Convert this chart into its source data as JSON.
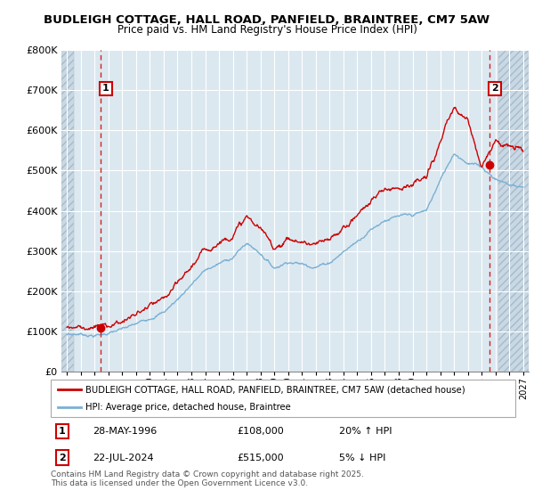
{
  "title": "BUDLEIGH COTTAGE, HALL ROAD, PANFIELD, BRAINTREE, CM7 5AW",
  "subtitle": "Price paid vs. HM Land Registry's House Price Index (HPI)",
  "ylim": [
    0,
    800000
  ],
  "yticks": [
    0,
    100000,
    200000,
    300000,
    400000,
    500000,
    600000,
    700000,
    800000
  ],
  "ytick_labels": [
    "£0",
    "£100K",
    "£200K",
    "£300K",
    "£400K",
    "£500K",
    "£600K",
    "£700K",
    "£800K"
  ],
  "xlim_start": 1993.6,
  "xlim_end": 2027.4,
  "hatch_left_end": 1994.5,
  "hatch_right_start": 2025.2,
  "sale1_date": 1996.41,
  "sale1_price": 108000,
  "sale1_label": "1",
  "sale1_date_str": "28-MAY-1996",
  "sale1_price_str": "£108,000",
  "sale1_hpi_str": "20% ↑ HPI",
  "sale2_date": 2024.55,
  "sale2_price": 515000,
  "sale2_label": "2",
  "sale2_date_str": "22-JUL-2024",
  "sale2_price_str": "£515,000",
  "sale2_hpi_str": "5% ↓ HPI",
  "red_line_color": "#cc0000",
  "blue_line_color": "#7ab0d4",
  "plot_bg_color": "#dce8f0",
  "hatch_color": "#c8d8e4",
  "grid_color": "#ffffff",
  "legend_label_red": "BUDLEIGH COTTAGE, HALL ROAD, PANFIELD, BRAINTREE, CM7 5AW (detached house)",
  "legend_label_blue": "HPI: Average price, detached house, Braintree",
  "footnote": "Contains HM Land Registry data © Crown copyright and database right 2025.\nThis data is licensed under the Open Government Licence v3.0."
}
